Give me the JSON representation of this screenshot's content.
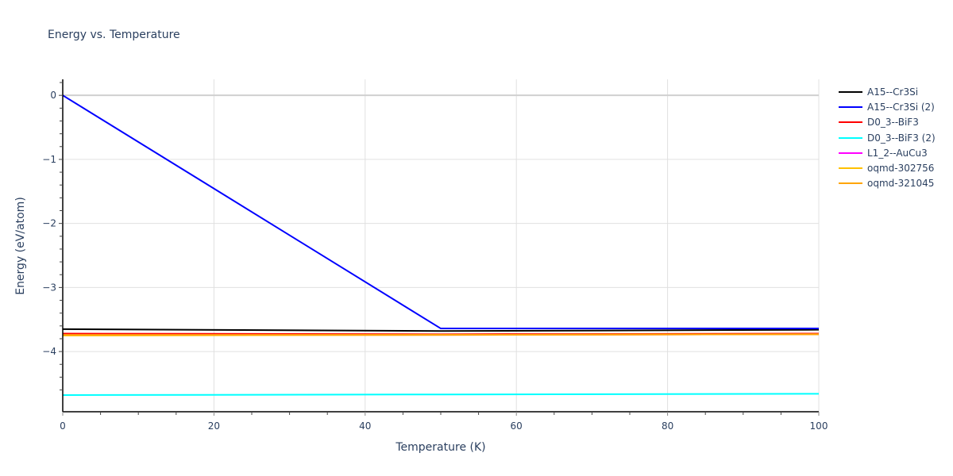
{
  "chart_data": {
    "type": "line",
    "title": "Energy vs. Temperature",
    "xlabel": "Temperature (K)",
    "ylabel": "Energy (eV/atom)",
    "xlim": [
      0,
      100
    ],
    "ylim": [
      -4.94,
      0.25
    ],
    "xticks": [
      0,
      20,
      40,
      60,
      80,
      100
    ],
    "yticks": [
      0,
      -1,
      -2,
      -3,
      -4
    ],
    "xtick_labels": [
      "0",
      "20",
      "40",
      "60",
      "80",
      "100"
    ],
    "ytick_labels": [
      "0",
      "−1",
      "−2",
      "−3",
      "−4"
    ],
    "grid": true,
    "legend_position": "right",
    "series": [
      {
        "name": "A15--Cr3Si",
        "color": "#000000",
        "x": [
          0,
          50,
          100
        ],
        "y": [
          -3.65,
          -3.68,
          -3.66
        ]
      },
      {
        "name": "A15--Cr3Si (2)",
        "color": "#0000ff",
        "x": [
          0,
          50,
          100
        ],
        "y": [
          0.0,
          -3.64,
          -3.64
        ]
      },
      {
        "name": "D0_3--BiF3",
        "color": "#ff0000",
        "x": [
          0,
          50,
          100
        ],
        "y": [
          -3.72,
          -3.73,
          -3.72
        ]
      },
      {
        "name": "D0_3--BiF3 (2)",
        "color": "#00ffff",
        "x": [
          0,
          50,
          100
        ],
        "y": [
          -4.68,
          -4.67,
          -4.66
        ]
      },
      {
        "name": "L1_2--AuCu3",
        "color": "#ff00ff",
        "x": [
          0,
          50,
          100
        ],
        "y": [
          -3.74,
          -3.74,
          -3.73
        ]
      },
      {
        "name": "oqmd-302756",
        "color": "#ffc000",
        "x": [
          0,
          50,
          100
        ],
        "y": [
          -3.75,
          -3.74,
          -3.73
        ]
      },
      {
        "name": "oqmd-321045",
        "color": "#ffa500",
        "x": [
          0,
          50,
          100
        ],
        "y": [
          -3.74,
          -3.74,
          -3.73
        ]
      }
    ]
  }
}
